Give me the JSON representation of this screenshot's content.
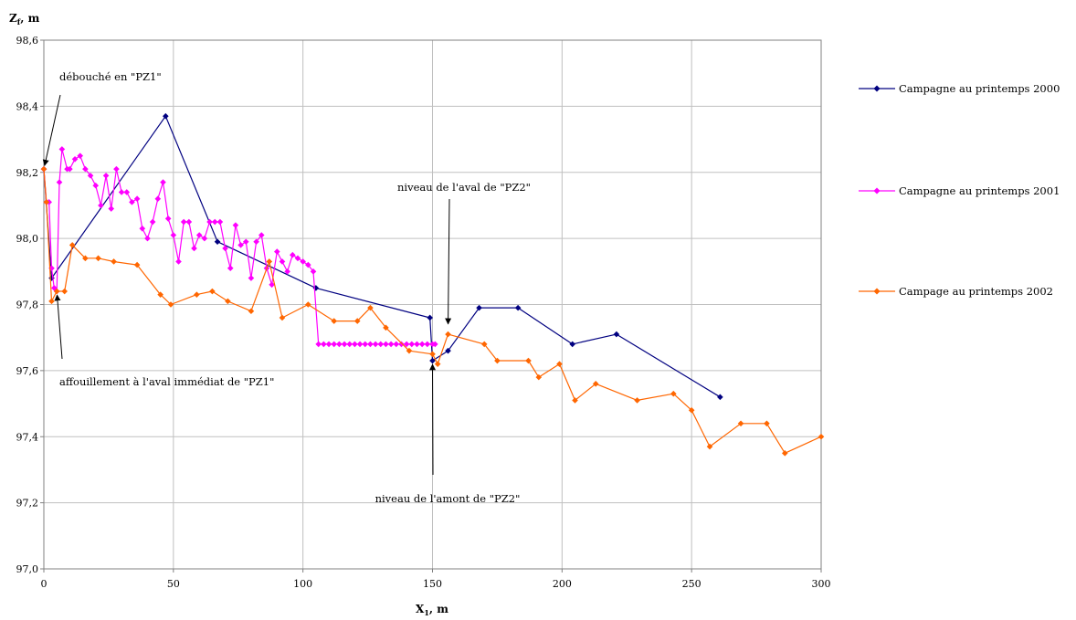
{
  "chart_data": {
    "type": "line",
    "xlabel": "X",
    "xlabel_sub": "1",
    "xlabel_unit": ", m",
    "ylabel": "Z",
    "ylabel_sub": "f",
    "ylabel_unit": ", m",
    "xlim": [
      0,
      300
    ],
    "ylim": [
      97.0,
      98.6
    ],
    "xticks": [
      0,
      50,
      100,
      150,
      200,
      250,
      300
    ],
    "yticks": [
      97.0,
      97.2,
      97.4,
      97.6,
      97.8,
      98.0,
      98.2,
      98.4,
      98.6
    ],
    "xtick_labels": [
      "0",
      "50",
      "100",
      "150",
      "200",
      "250",
      "300"
    ],
    "ytick_labels": [
      "97,0",
      "97,2",
      "97,4",
      "97,6",
      "97,8",
      "98,0",
      "98,2",
      "98,4",
      "98,6"
    ],
    "grid": true,
    "legend_position": "right",
    "series": [
      {
        "name": "Campagne au printemps 2000",
        "color": "#000080",
        "x": [
          0,
          3,
          47,
          67,
          105,
          149,
          150,
          156,
          168,
          183,
          204,
          221,
          261
        ],
        "y": [
          98.21,
          97.88,
          98.37,
          97.99,
          97.85,
          97.76,
          97.63,
          97.66,
          97.79,
          97.79,
          97.68,
          97.71,
          97.52
        ]
      },
      {
        "name": "Campagne au printemps 2001",
        "color": "#ff00ff",
        "x": [
          0,
          1,
          2,
          3,
          4,
          5,
          6,
          7,
          9,
          10,
          12,
          14,
          16,
          18,
          20,
          22,
          24,
          26,
          28,
          30,
          32,
          34,
          36,
          38,
          40,
          42,
          44,
          46,
          48,
          50,
          52,
          54,
          56,
          58,
          60,
          62,
          64,
          66,
          68,
          70,
          72,
          74,
          76,
          78,
          80,
          82,
          84,
          86,
          88,
          90,
          92,
          94,
          96,
          98,
          100,
          102,
          104,
          106,
          108,
          110,
          112,
          114,
          116,
          118,
          120,
          122,
          124,
          126,
          128,
          130,
          132,
          134,
          136,
          138,
          140,
          142,
          144,
          146,
          148,
          150,
          151
        ],
        "y": [
          98.21,
          98.11,
          98.11,
          97.91,
          97.85,
          97.84,
          98.17,
          98.27,
          98.21,
          98.21,
          98.24,
          98.25,
          98.21,
          98.19,
          98.16,
          98.1,
          98.19,
          98.09,
          98.21,
          98.14,
          98.14,
          98.11,
          98.12,
          98.03,
          98.0,
          98.05,
          98.12,
          98.17,
          98.06,
          98.01,
          97.93,
          98.05,
          98.05,
          97.97,
          98.01,
          98.0,
          98.05,
          98.05,
          98.05,
          97.97,
          97.91,
          98.04,
          97.98,
          97.99,
          97.88,
          97.99,
          98.01,
          97.91,
          97.86,
          97.96,
          97.93,
          97.9,
          97.95,
          97.94,
          97.93,
          97.92,
          97.9,
          97.68,
          97.68,
          97.68,
          97.68,
          97.68,
          97.68,
          97.68,
          97.68,
          97.68,
          97.68,
          97.68,
          97.68,
          97.68,
          97.68,
          97.68,
          97.68,
          97.68,
          97.68,
          97.68,
          97.68,
          97.68,
          97.68,
          97.68,
          97.68
        ]
      },
      {
        "name": "Campage au printemps 2002",
        "color": "#ff6600",
        "x": [
          0,
          1,
          3,
          5,
          8,
          11,
          16,
          21,
          27,
          36,
          45,
          49,
          59,
          65,
          71,
          80,
          87,
          92,
          102,
          112,
          121,
          126,
          132,
          141,
          150,
          152,
          156,
          170,
          175,
          187,
          191,
          199,
          205,
          213,
          229,
          243,
          250,
          257,
          269,
          279,
          286,
          300
        ],
        "y": [
          98.21,
          98.11,
          97.81,
          97.84,
          97.84,
          97.98,
          97.94,
          97.94,
          97.93,
          97.92,
          97.83,
          97.8,
          97.83,
          97.84,
          97.81,
          97.78,
          97.93,
          97.76,
          97.8,
          97.75,
          97.75,
          97.79,
          97.73,
          97.66,
          97.65,
          97.62,
          97.71,
          97.68,
          97.63,
          97.63,
          97.58,
          97.62,
          97.51,
          97.56,
          97.51,
          97.53,
          97.48,
          97.37,
          97.44,
          97.44,
          97.35,
          97.4
        ]
      }
    ],
    "annotations": [
      {
        "text": "débouché en \"PZ1\"",
        "arrow_to": [
          0,
          98.21
        ]
      },
      {
        "text": "affouillement à l'aval immédiat de \"PZ1\"",
        "arrow_to": [
          5,
          97.84
        ]
      },
      {
        "text": "niveau de l'aval de \"PZ2\"",
        "arrow_to": [
          156,
          97.73
        ]
      },
      {
        "text": "niveau de l'amont de \"PZ2\"",
        "arrow_to": [
          150,
          97.63
        ]
      }
    ]
  }
}
